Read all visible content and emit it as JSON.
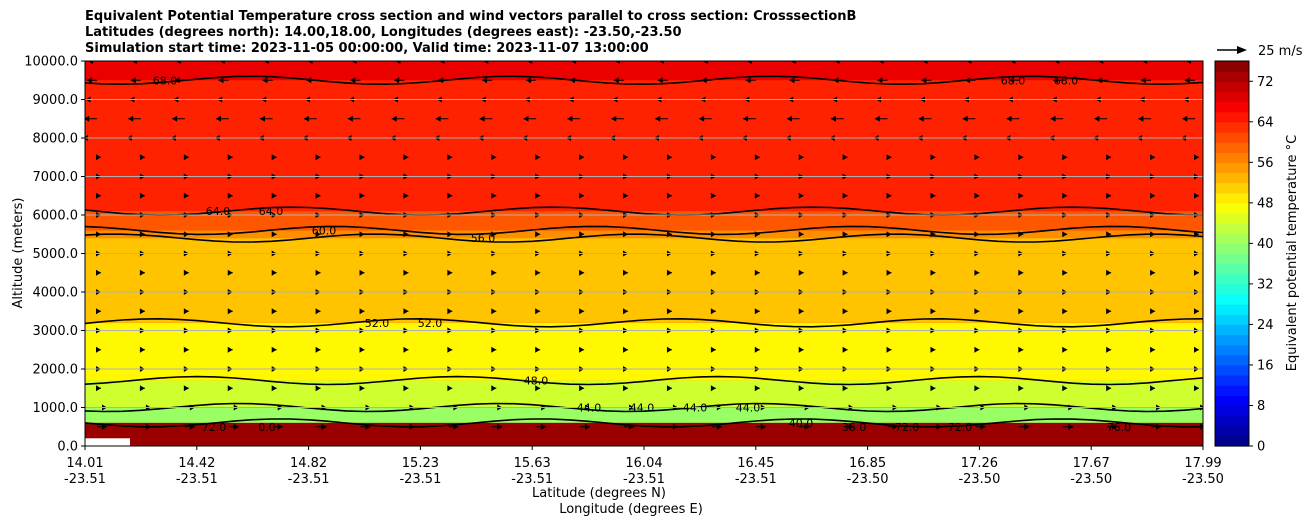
{
  "titles": {
    "line1": "Equivalent Potential Temperature cross section and wind vectors parallel to cross section: CrosssectionB",
    "line2": "Latitudes (degrees north): 14.00,18.00, Longitudes (degrees east): -23.50,-23.50",
    "line3": "Simulation start time: 2023-11-05 00:00:00, Valid time: 2023-11-07 13:00:00"
  },
  "chart_data": {
    "type": "heatmap",
    "title": "Equivalent Potential Temperature cross section and wind vectors parallel to cross section: CrosssectionB",
    "ylabel": "Altitude (meters)",
    "xlabel_lat": "Latitude (degrees N)",
    "xlabel_lon": "Longitude (degrees E)",
    "ylim": [
      0,
      10000
    ],
    "y_ticks": [
      "0.0",
      "1000.0",
      "2000.0",
      "3000.0",
      "4000.0",
      "5000.0",
      "6000.0",
      "7000.0",
      "8000.0",
      "9000.0",
      "10000.0"
    ],
    "x_ticks": [
      {
        "lat": "14.01",
        "lon": "-23.51"
      },
      {
        "lat": "14.42",
        "lon": "-23.51"
      },
      {
        "lat": "14.82",
        "lon": "-23.51"
      },
      {
        "lat": "15.23",
        "lon": "-23.51"
      },
      {
        "lat": "15.63",
        "lon": "-23.51"
      },
      {
        "lat": "16.04",
        "lon": "-23.51"
      },
      {
        "lat": "16.45",
        "lon": "-23.51"
      },
      {
        "lat": "16.85",
        "lon": "-23.50"
      },
      {
        "lat": "17.26",
        "lon": "-23.50"
      },
      {
        "lat": "17.67",
        "lon": "-23.50"
      },
      {
        "lat": "17.99",
        "lon": "-23.50"
      }
    ],
    "colorbar": {
      "label": "Equivalent potential temperature °C",
      "range": [
        0,
        76
      ],
      "ticks": [
        "0",
        "8",
        "16",
        "24",
        "32",
        "40",
        "48",
        "56",
        "64",
        "72"
      ]
    },
    "contour_labels": [
      "68.0",
      "64.0",
      "64.0",
      "60.0",
      "52.0",
      "52.0",
      "56.0",
      "48.0",
      "44.0",
      "44.0",
      "44.0",
      "44.0",
      "40.0",
      "36.0",
      "72.0",
      "72.0",
      "68.0",
      "68.0",
      "76.0",
      "72.0",
      "0.0"
    ],
    "approx_isotherm_heights_m": {
      "40.0": 600,
      "44.0": 1000,
      "48.0": 1700,
      "52.0": 3200,
      "56.0": 5400,
      "60.0": 5600,
      "64.0": 6100,
      "68.0": 9500
    },
    "wind_reference": "25 m/s"
  }
}
